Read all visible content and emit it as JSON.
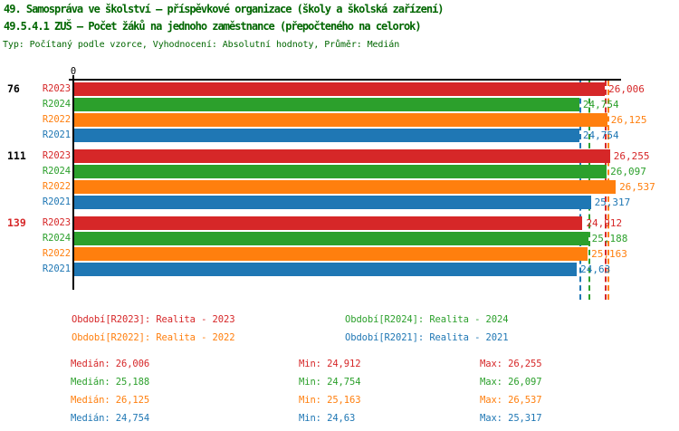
{
  "header": {
    "title1": "49. Samospráva ve školství – příspěvkové organizace (školy a školská zařízení)",
    "title2": "49.5.4.1 ZUŠ – Počet žáků na jednoho zaměstnance (přepočteného na celorok)",
    "subtitle": "Typ: Počítaný podle vzorce, Vyhodnocení: Absolutní hodnoty, Průměr: Medián"
  },
  "colors": {
    "title_green": "#006600",
    "red": "#d62728",
    "green": "#2ca02c",
    "orange": "#ff7f0e",
    "blue": "#1f77b4",
    "black": "#000000"
  },
  "chart_data": {
    "type": "bar",
    "orientation": "horizontal",
    "title": "49.5.4.1 ZUŠ – Počet žáků na jednoho zaměstnance (přepočteného na celorok)",
    "x_axis": {
      "zero_label": "0",
      "min": 0,
      "max_scale": 26.8,
      "grid": false
    },
    "series": [
      {
        "id": "R2023",
        "name": "Realita - 2023",
        "color": "#d62728",
        "median": 26.006
      },
      {
        "id": "R2024",
        "name": "Realita - 2024",
        "color": "#2ca02c",
        "median": 25.188
      },
      {
        "id": "R2022",
        "name": "Realita - 2022",
        "color": "#ff7f0e",
        "median": 26.125
      },
      {
        "id": "R2021",
        "name": "Realita - 2021",
        "color": "#1f77b4",
        "median": 24.754
      }
    ],
    "groups": [
      {
        "label": "76",
        "label_color": "#000000",
        "bars": [
          {
            "series": "R2023",
            "value": 26.006,
            "value_label": "26,006"
          },
          {
            "series": "R2024",
            "value": 24.754,
            "value_label": "24,754"
          },
          {
            "series": "R2022",
            "value": 26.125,
            "value_label": "26,125"
          },
          {
            "series": "R2021",
            "value": 24.754,
            "value_label": "24,754"
          }
        ]
      },
      {
        "label": "111",
        "label_color": "#000000",
        "bars": [
          {
            "series": "R2023",
            "value": 26.255,
            "value_label": "26,255"
          },
          {
            "series": "R2024",
            "value": 26.097,
            "value_label": "26,097"
          },
          {
            "series": "R2022",
            "value": 26.537,
            "value_label": "26,537"
          },
          {
            "series": "R2021",
            "value": 25.317,
            "value_label": "25,317"
          }
        ]
      },
      {
        "label": "139",
        "label_color": "#d62728",
        "bars": [
          {
            "series": "R2023",
            "value": 24.912,
            "value_label": "24,912"
          },
          {
            "series": "R2024",
            "value": 25.188,
            "value_label": "25,188"
          },
          {
            "series": "R2022",
            "value": 25.163,
            "value_label": "25,163"
          },
          {
            "series": "R2021",
            "value": 24.63,
            "value_label": "24,63"
          }
        ]
      }
    ]
  },
  "legend": {
    "items": [
      {
        "label": "Období[R2023]: Realita - 2023",
        "color": "#d62728"
      },
      {
        "label": "Období[R2024]: Realita - 2024",
        "color": "#2ca02c"
      },
      {
        "label": "Období[R2022]: Realita - 2022",
        "color": "#ff7f0e"
      },
      {
        "label": "Období[R2021]: Realita - 2021",
        "color": "#1f77b4"
      }
    ]
  },
  "stats": {
    "rows": [
      {
        "color": "#d62728",
        "median": "Medián: 26,006",
        "min": "Min: 24,912",
        "max": "Max: 26,255"
      },
      {
        "color": "#2ca02c",
        "median": "Medián: 25,188",
        "min": "Min: 24,754",
        "max": "Max: 26,097"
      },
      {
        "color": "#ff7f0e",
        "median": "Medián: 26,125",
        "min": "Min: 25,163",
        "max": "Max: 26,537"
      },
      {
        "color": "#1f77b4",
        "median": "Medián: 24,754",
        "min": "Min: 24,63",
        "max": "Max: 25,317"
      }
    ]
  }
}
